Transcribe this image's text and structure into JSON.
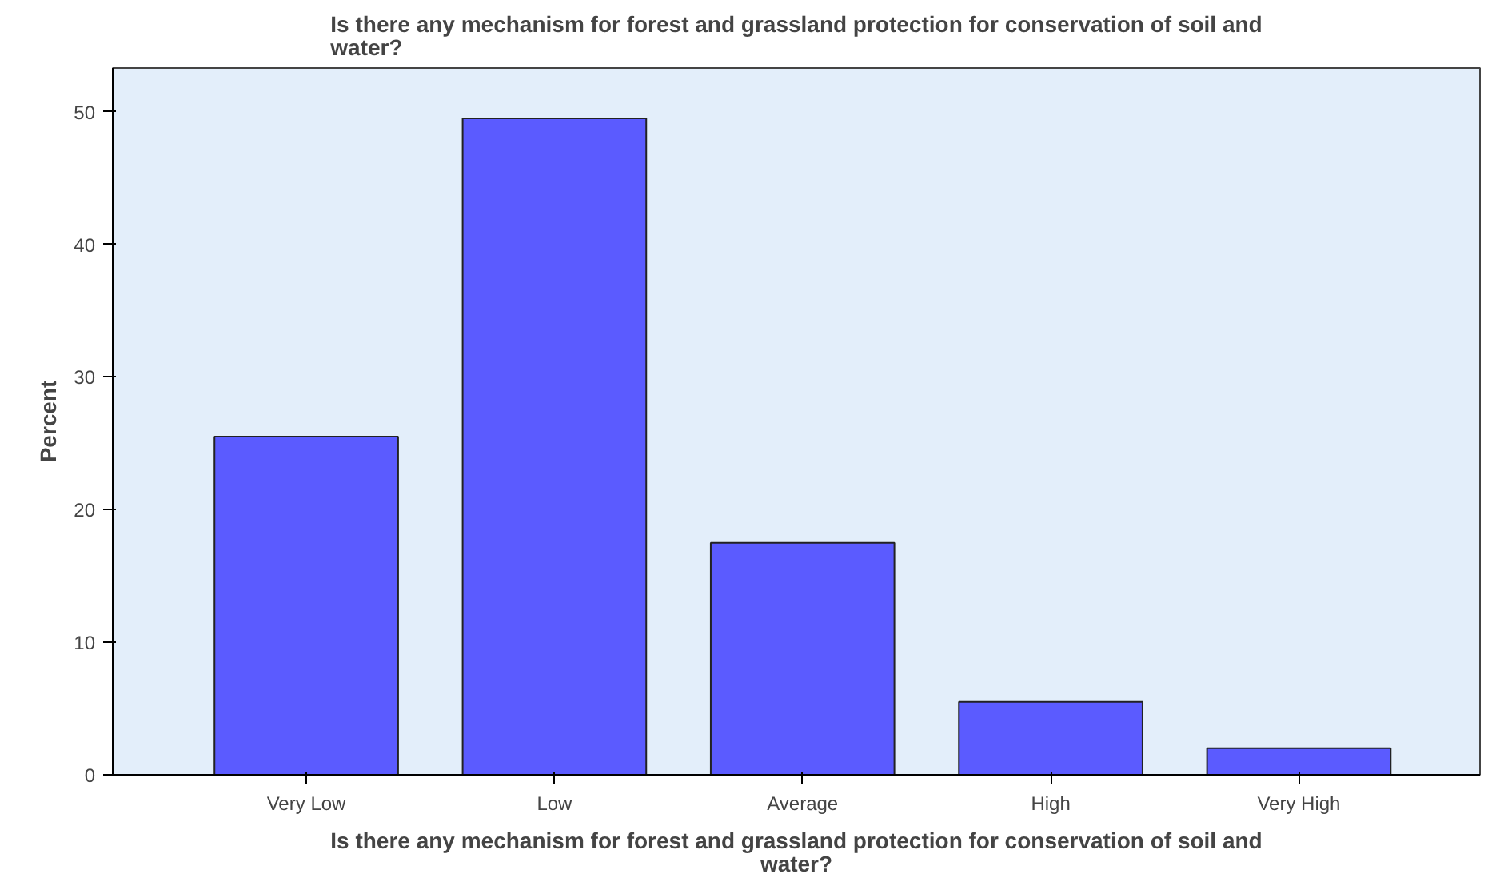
{
  "chart_data": {
    "type": "bar",
    "title": "Is there any mechanism for forest and grassland protection for conservation of soil and water?",
    "xlabel": "Is there any mechanism for forest and grassland protection for conservation of soil and water?",
    "ylabel": "Percent",
    "categories": [
      "Very Low",
      "Low",
      "Average",
      "High",
      "Very High"
    ],
    "values": [
      25.5,
      49.5,
      17.5,
      5.5,
      2.0
    ],
    "color": "#5b5bff",
    "ylim": [
      0,
      53.3
    ],
    "yticks": [
      0,
      10,
      20,
      30,
      40,
      50
    ],
    "grid": false
  }
}
